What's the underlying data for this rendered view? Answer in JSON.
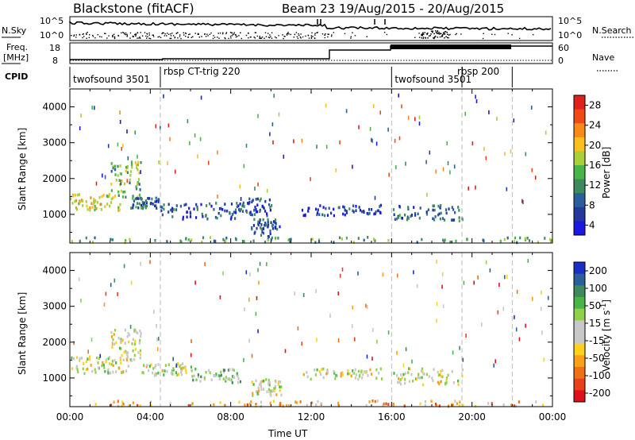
{
  "header": {
    "station": "Blackstone (fitACF)",
    "beam_dates": "Beam 23  19/Aug/2015 - 20/Aug/2015"
  },
  "panels": {
    "nsky": {
      "left_label": "N.Sky",
      "right_label": "N.Search",
      "left_ticks": [
        "10^5",
        "10^0"
      ],
      "right_ticks": [
        "10^5",
        "10^0"
      ]
    },
    "freq": {
      "left_label_1": "Freq.",
      "left_label_2": "[MHz]",
      "right_label": "Nave",
      "left_ticks": [
        "18",
        "8"
      ],
      "right_ticks": [
        "60",
        "0"
      ]
    },
    "cpid": {
      "label": "CPID",
      "segments": [
        {
          "label": "twofsound 3501",
          "start_h": 0.0
        },
        {
          "label": "rbsp CT-trig 220",
          "start_h": 4.5
        },
        {
          "label": "twofsound 3501",
          "start_h": 16.0
        },
        {
          "label": "rbsp 200",
          "start_h": 19.5
        },
        {
          "label": "",
          "start_h": 22.0
        }
      ]
    }
  },
  "colorbars": {
    "power": {
      "title": "Power [dB]",
      "tick_labels": [
        "28",
        "24",
        "20",
        "16",
        "12",
        "8",
        "4"
      ],
      "colors": [
        "#e0201b",
        "#f04a14",
        "#f98918",
        "#fdbf1b",
        "#a9cf3a",
        "#49b548",
        "#3d8a5c",
        "#2a5f9b",
        "#213a9c",
        "#1b18e0"
      ]
    },
    "velocity": {
      "title": "Velocity [m s^-1]",
      "tick_labels": [
        "200",
        "100",
        "50",
        "15",
        "-15",
        "-50",
        "-100",
        "-200"
      ],
      "colors": [
        "#1b2fc8",
        "#2a5f9b",
        "#3d8a5c",
        "#49b548",
        "#8fd14a",
        "#c8c8c8",
        "#c8c8c8",
        "#fdd21b",
        "#f9a018",
        "#f07014",
        "#e8401b",
        "#e0101b"
      ]
    }
  },
  "chart_data": [
    {
      "type": "heatmap",
      "title": "Power",
      "xlabel": "",
      "ylabel": "Slant Range [km]",
      "xlim": [
        0,
        24
      ],
      "ylim": [
        200,
        4500
      ],
      "y_ticks": [
        1000,
        2000,
        3000,
        4000
      ],
      "colorbar_range": [
        0,
        30
      ],
      "features": [
        {
          "x_start": 0.0,
          "x_end": 2.5,
          "y_low": 1150,
          "y_high": 1600,
          "level": 0.6
        },
        {
          "x_start": 2.0,
          "x_end": 3.5,
          "y_low": 1500,
          "y_high": 2500,
          "level": 0.45
        },
        {
          "x_start": 3.0,
          "x_end": 4.5,
          "y_low": 1200,
          "y_high": 1500,
          "level": 0.25
        },
        {
          "x_start": 4.5,
          "x_end": 8.5,
          "y_low": 900,
          "y_high": 1350,
          "level": 0.2
        },
        {
          "x_start": 8.0,
          "x_end": 10.0,
          "y_low": 1000,
          "y_high": 1500,
          "level": 0.2
        },
        {
          "x_start": 9.0,
          "x_end": 10.5,
          "y_low": 400,
          "y_high": 900,
          "level": 0.2
        },
        {
          "x_start": 11.5,
          "x_end": 15.5,
          "y_low": 1000,
          "y_high": 1300,
          "level": 0.15
        },
        {
          "x_start": 16.0,
          "x_end": 19.5,
          "y_low": 850,
          "y_high": 1300,
          "level": 0.25
        },
        {
          "x_start": 0.0,
          "x_end": 24.0,
          "y_low": 250,
          "y_high": 400,
          "level": 0.4
        }
      ]
    },
    {
      "type": "heatmap",
      "title": "Velocity",
      "xlabel": "Time UT",
      "ylabel": "Slant Range [km]",
      "xlim": [
        0,
        24
      ],
      "ylim": [
        200,
        4500
      ],
      "x_tick_labels": [
        "00:00",
        "04:00",
        "08:00",
        "12:00",
        "16:00",
        "20:00",
        "00:00"
      ],
      "y_ticks": [
        1000,
        2000,
        3000,
        4000
      ],
      "colorbar_range": [
        -200,
        200
      ],
      "features": [
        {
          "x_start": 0.0,
          "x_end": 3.0,
          "y_low": 1150,
          "y_high": 1650,
          "level": 0.5
        },
        {
          "x_start": 2.0,
          "x_end": 3.5,
          "y_low": 1500,
          "y_high": 2400,
          "level": 0.5
        },
        {
          "x_start": 3.5,
          "x_end": 6.0,
          "y_low": 1100,
          "y_high": 1450,
          "level": 0.5
        },
        {
          "x_start": 6.0,
          "x_end": 8.5,
          "y_low": 900,
          "y_high": 1300,
          "level": 0.62
        },
        {
          "x_start": 9.0,
          "x_end": 10.5,
          "y_low": 550,
          "y_high": 1000,
          "level": 0.5
        },
        {
          "x_start": 11.5,
          "x_end": 15.5,
          "y_low": 1000,
          "y_high": 1300,
          "level": 0.5
        },
        {
          "x_start": 16.0,
          "x_end": 19.5,
          "y_low": 850,
          "y_high": 1300,
          "level": 0.5
        },
        {
          "x_start": 0.0,
          "x_end": 24.0,
          "y_low": 250,
          "y_high": 400,
          "level": 0.3
        }
      ]
    }
  ]
}
